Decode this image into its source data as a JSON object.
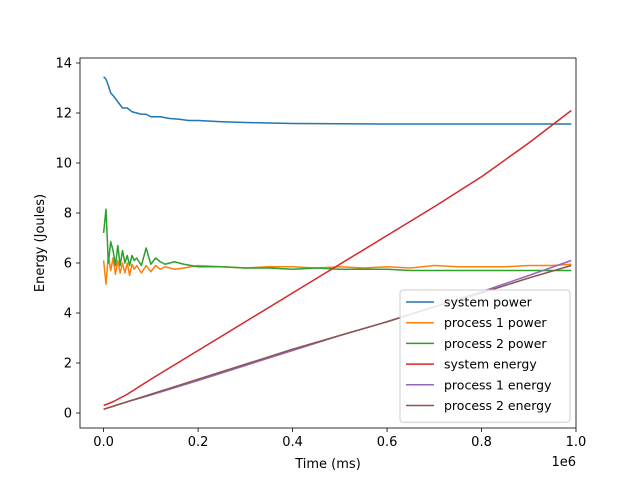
{
  "chart_data": {
    "type": "line",
    "title": "",
    "xlabel": "Time (ms)",
    "ylabel": "Energy (Joules)",
    "x_offset_label": "1e6",
    "xlim": [
      -0.05,
      1.0
    ],
    "ylim": [
      -0.6,
      14.2
    ],
    "x_ticks": [
      0.0,
      0.2,
      0.4,
      0.6,
      0.8,
      1.0
    ],
    "x_tick_labels": [
      "0.0",
      "0.2",
      "0.4",
      "0.6",
      "0.8",
      "1.0"
    ],
    "y_ticks": [
      0,
      2,
      4,
      6,
      8,
      10,
      12,
      14
    ],
    "y_tick_labels": [
      "0",
      "2",
      "4",
      "6",
      "8",
      "10",
      "12",
      "14"
    ],
    "grid": false,
    "legend_position": "lower-right",
    "series": [
      {
        "name": "system power",
        "color": "#1f77b4",
        "x": [
          0.0,
          0.005,
          0.01,
          0.015,
          0.02,
          0.03,
          0.04,
          0.05,
          0.06,
          0.07,
          0.08,
          0.09,
          0.1,
          0.12,
          0.14,
          0.16,
          0.18,
          0.2,
          0.25,
          0.3,
          0.35,
          0.4,
          0.5,
          0.6,
          0.7,
          0.8,
          0.9,
          0.99
        ],
        "y": [
          13.45,
          13.35,
          13.1,
          12.8,
          12.7,
          12.45,
          12.2,
          12.2,
          12.05,
          12.0,
          11.95,
          11.95,
          11.85,
          11.85,
          11.78,
          11.75,
          11.7,
          11.7,
          11.65,
          11.62,
          11.6,
          11.58,
          11.57,
          11.56,
          11.56,
          11.56,
          11.56,
          11.56
        ]
      },
      {
        "name": "process 1 power",
        "color": "#ff7f0e",
        "x": [
          0.0,
          0.005,
          0.01,
          0.015,
          0.02,
          0.025,
          0.03,
          0.035,
          0.04,
          0.045,
          0.05,
          0.055,
          0.06,
          0.065,
          0.07,
          0.08,
          0.09,
          0.1,
          0.11,
          0.12,
          0.13,
          0.15,
          0.17,
          0.2,
          0.25,
          0.3,
          0.35,
          0.4,
          0.45,
          0.5,
          0.55,
          0.6,
          0.65,
          0.7,
          0.75,
          0.8,
          0.85,
          0.9,
          0.95,
          0.99
        ],
        "y": [
          6.1,
          5.15,
          6.3,
          5.7,
          6.2,
          5.55,
          6.1,
          5.6,
          6.0,
          5.6,
          6.0,
          5.5,
          5.95,
          5.75,
          5.9,
          5.6,
          5.9,
          5.65,
          5.9,
          5.75,
          5.85,
          5.75,
          5.8,
          5.9,
          5.85,
          5.8,
          5.85,
          5.85,
          5.8,
          5.85,
          5.8,
          5.85,
          5.8,
          5.9,
          5.85,
          5.85,
          5.85,
          5.9,
          5.9,
          5.95
        ]
      },
      {
        "name": "process 2 power",
        "color": "#2ca02c",
        "x": [
          0.0,
          0.005,
          0.01,
          0.015,
          0.02,
          0.025,
          0.03,
          0.035,
          0.04,
          0.045,
          0.05,
          0.055,
          0.06,
          0.065,
          0.07,
          0.08,
          0.09,
          0.1,
          0.11,
          0.12,
          0.13,
          0.15,
          0.17,
          0.2,
          0.25,
          0.3,
          0.35,
          0.4,
          0.45,
          0.5,
          0.55,
          0.6,
          0.65,
          0.7,
          0.75,
          0.8,
          0.85,
          0.9,
          0.95,
          0.99
        ],
        "y": [
          7.2,
          8.15,
          6.0,
          6.85,
          6.5,
          5.9,
          6.7,
          5.9,
          6.5,
          6.0,
          6.3,
          5.9,
          6.3,
          6.1,
          6.2,
          5.9,
          6.6,
          5.95,
          6.2,
          6.05,
          5.95,
          6.05,
          5.95,
          5.85,
          5.85,
          5.8,
          5.8,
          5.75,
          5.8,
          5.75,
          5.75,
          5.75,
          5.7,
          5.7,
          5.7,
          5.7,
          5.7,
          5.7,
          5.7,
          5.7
        ]
      },
      {
        "name": "system energy",
        "color": "#d62728",
        "x": [
          0.0,
          0.02,
          0.05,
          0.1,
          0.2,
          0.3,
          0.4,
          0.5,
          0.6,
          0.7,
          0.8,
          0.9,
          0.99
        ],
        "y": [
          0.3,
          0.45,
          0.75,
          1.35,
          2.5,
          3.65,
          4.8,
          5.95,
          7.1,
          8.25,
          9.45,
          10.8,
          12.1
        ]
      },
      {
        "name": "process 1 energy",
        "color": "#9467bd",
        "x": [
          0.0,
          0.05,
          0.1,
          0.2,
          0.3,
          0.4,
          0.5,
          0.6,
          0.7,
          0.8,
          0.9,
          0.99
        ],
        "y": [
          0.15,
          0.45,
          0.72,
          1.3,
          1.9,
          2.5,
          3.1,
          3.65,
          4.25,
          4.85,
          5.5,
          6.1
        ]
      },
      {
        "name": "process 2 energy",
        "color": "#8c564b",
        "x": [
          0.0,
          0.05,
          0.1,
          0.2,
          0.3,
          0.4,
          0.5,
          0.6,
          0.7,
          0.8,
          0.9,
          0.99
        ],
        "y": [
          0.15,
          0.45,
          0.75,
          1.35,
          1.95,
          2.55,
          3.1,
          3.65,
          4.25,
          4.8,
          5.4,
          5.9
        ]
      }
    ]
  }
}
